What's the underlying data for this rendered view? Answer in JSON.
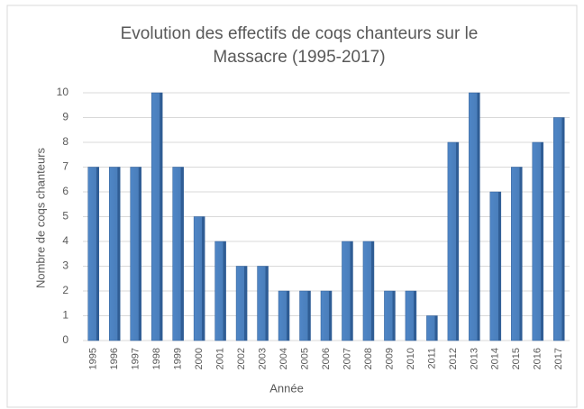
{
  "chart_data": {
    "type": "bar",
    "title": [
      "Evolution des effectifs de coqs chanteurs sur le",
      "Massacre (1995-2017)"
    ],
    "x_label": "Année",
    "y_label": "Nombre de coqs chanteurs",
    "categories": [
      "1995",
      "1996",
      "1997",
      "1998",
      "1999",
      "2000",
      "2001",
      "2002",
      "2003",
      "2004",
      "2005",
      "2006",
      "2007",
      "2008",
      "2009",
      "2010",
      "2011",
      "2012",
      "2013",
      "2014",
      "2015",
      "2016",
      "2017"
    ],
    "values": [
      7,
      7,
      7,
      10,
      7,
      5,
      4,
      3,
      3,
      2,
      2,
      2,
      4,
      4,
      2,
      2,
      1,
      8,
      10,
      6,
      7,
      8,
      9
    ],
    "color": "#4a7ebb",
    "ylim": [
      0,
      10
    ],
    "yticks": [
      0,
      1,
      2,
      3,
      4,
      5,
      6,
      7,
      8,
      9,
      10
    ],
    "grid": true
  }
}
